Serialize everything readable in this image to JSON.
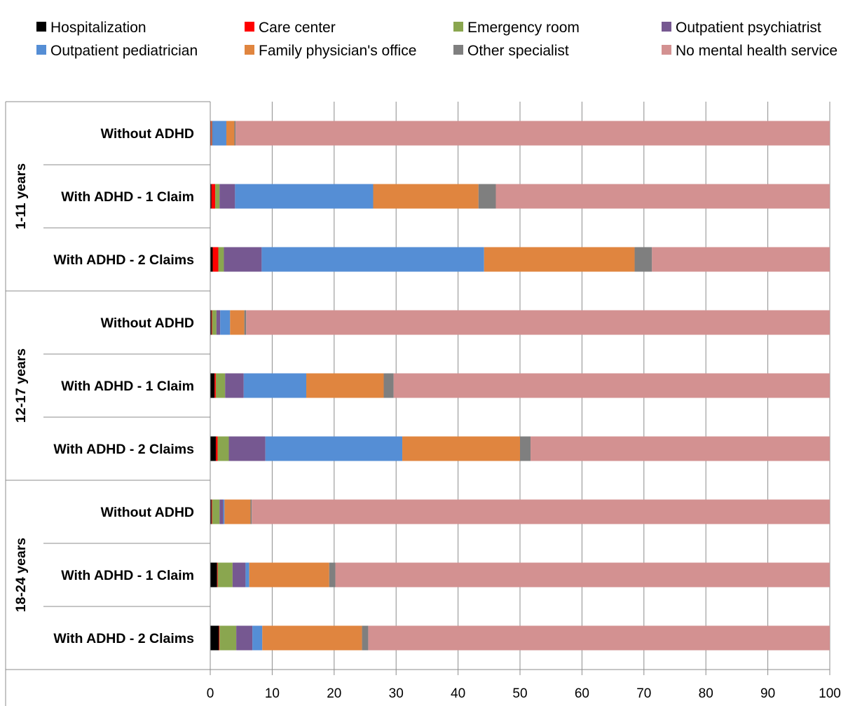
{
  "chart_data": {
    "type": "bar",
    "orientation": "horizontal",
    "stacked": true,
    "xlim": [
      0,
      100
    ],
    "xticks": [
      "0",
      "10",
      "20",
      "30",
      "40",
      "50",
      "60",
      "70",
      "80",
      "90",
      "100"
    ],
    "grid": true,
    "legend_position": "top",
    "groups": [
      {
        "label": "1-11 years",
        "categories": [
          "Without ADHD",
          "With ADHD - 1 Claim",
          "With ADHD - 2 Claims"
        ]
      },
      {
        "label": "12-17 years",
        "categories": [
          "Without ADHD",
          "With ADHD - 1 Claim",
          "With ADHD - 2 Claims"
        ]
      },
      {
        "label": "18-24 years",
        "categories": [
          "Without ADHD",
          "With ADHD - 1 Claim",
          "With ADHD - 2 Claims"
        ]
      }
    ],
    "series": [
      {
        "name": "Hospitalization",
        "color": "#000000",
        "values": [
          0.1,
          0.2,
          0.4,
          0.2,
          0.7,
          0.9,
          0.2,
          1.1,
          1.4
        ]
      },
      {
        "name": "Care center",
        "color": "#ff0000",
        "values": [
          0.1,
          0.6,
          0.9,
          0.1,
          0.2,
          0.3,
          0.1,
          0.1,
          0.1
        ]
      },
      {
        "name": "Emergency room",
        "color": "#8aa64f",
        "values": [
          0.1,
          0.7,
          0.9,
          0.7,
          1.5,
          1.8,
          1.2,
          2.4,
          2.7
        ]
      },
      {
        "name": "Outpatient psychiatrist",
        "color": "#765891",
        "values": [
          0.1,
          2.5,
          6.1,
          0.6,
          3.0,
          5.9,
          0.6,
          2.1,
          2.6
        ]
      },
      {
        "name": "Outpatient pediatrician",
        "color": "#558ed5",
        "values": [
          2.2,
          22.3,
          35.9,
          1.6,
          10.1,
          22.1,
          0.2,
          0.6,
          1.6
        ]
      },
      {
        "name": "Family physician's office",
        "color": "#e0853f",
        "values": [
          1.3,
          17.0,
          24.3,
          2.3,
          12.5,
          19.0,
          4.2,
          12.9,
          16.1
        ]
      },
      {
        "name": "Other specialist",
        "color": "#7f7f7f",
        "values": [
          0.2,
          2.8,
          2.8,
          0.3,
          1.6,
          1.7,
          0.2,
          1.0,
          1.0
        ]
      },
      {
        "name": "No mental health service",
        "color": "#d39191",
        "values": [
          95.9,
          53.9,
          28.7,
          94.2,
          70.4,
          48.3,
          93.3,
          79.8,
          74.5
        ]
      }
    ]
  }
}
